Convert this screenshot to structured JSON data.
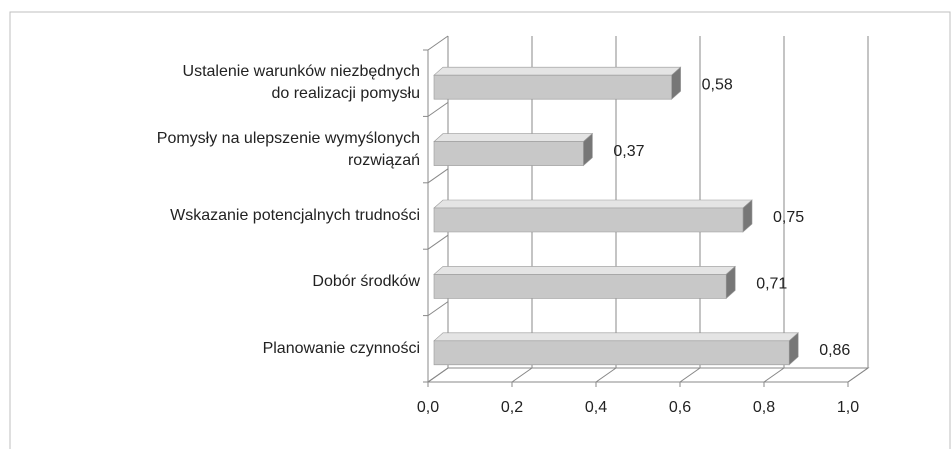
{
  "chart_data": {
    "type": "bar3d-horizontal",
    "categories": [
      "Ustalenie warunków niezbędnych\ndo realizacji pomysłu",
      "Pomysły na ulepszenie wymyślonych\nrozwiązań",
      "Wskazanie potencjalnych trudności",
      "Dobór środków",
      "Planowanie czynności"
    ],
    "values": [
      0.58,
      0.37,
      0.75,
      0.71,
      0.86
    ],
    "value_labels": [
      "0,58",
      "0,37",
      "0,75",
      "0,71",
      "0,86"
    ],
    "color": "#c8c8c8",
    "xlim": [
      0,
      1
    ],
    "xticks": [
      {
        "value": 0,
        "label": "0,0"
      },
      {
        "value": 0.2,
        "label": "0,2"
      },
      {
        "value": 0.4,
        "label": "0,4"
      },
      {
        "value": 0.6,
        "label": "0,6"
      },
      {
        "value": 0.8,
        "label": "0,8"
      },
      {
        "value": 1,
        "label": "1,0"
      }
    ],
    "grid": true
  }
}
